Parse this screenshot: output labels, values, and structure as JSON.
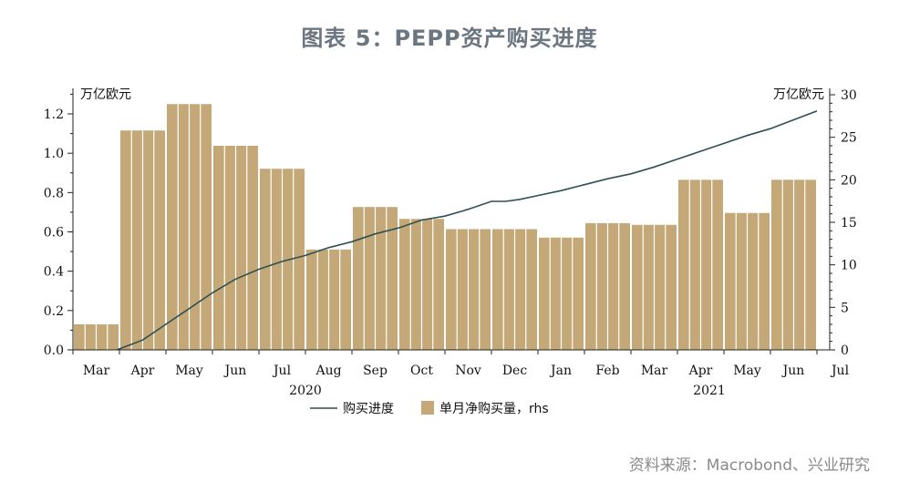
{
  "title": "图表 5：PEPP资产购买进度",
  "source": "资料来源：Macrobond、兴业研究",
  "chart_data": {
    "type": "bar+line",
    "left_axis_unit": "万亿欧元",
    "right_axis_unit": "万亿欧元",
    "left_ylim": [
      0,
      1.3
    ],
    "left_ticks": [
      "0.0",
      "0.2",
      "0.4",
      "0.6",
      "0.8",
      "1.0",
      "1.2"
    ],
    "right_ylim": [
      0,
      30
    ],
    "right_ticks": [
      "0",
      "5",
      "10",
      "15",
      "20",
      "25",
      "30"
    ],
    "month_labels": [
      "Mar",
      "Apr",
      "May",
      "Jun",
      "Jul",
      "Aug",
      "Sep",
      "Oct",
      "Nov",
      "Dec",
      "Jan",
      "Feb",
      "Mar",
      "Apr",
      "May",
      "Jun",
      "Jul"
    ],
    "year_labels": [
      "2020",
      "2021"
    ],
    "legend": {
      "line": "购买进度",
      "bars": "单月净购买量，rhs"
    },
    "bars": [
      {
        "month": "Mar 2020",
        "value": 3.0
      },
      {
        "month": "Apr 2020",
        "value": 25.8
      },
      {
        "month": "May 2020",
        "value": 28.9
      },
      {
        "month": "Jun 2020",
        "value": 24.0
      },
      {
        "month": "Jul 2020",
        "value": 21.3
      },
      {
        "month": "Aug 2020",
        "value": 11.8
      },
      {
        "month": "Sep 2020",
        "value": 16.8
      },
      {
        "month": "Oct 2020",
        "value": 15.4
      },
      {
        "month": "Nov 2020",
        "value": 14.2
      },
      {
        "month": "Dec 2020",
        "value": 14.2
      },
      {
        "month": "Jan 2021",
        "value": 13.2
      },
      {
        "month": "Feb 2021",
        "value": 14.9
      },
      {
        "month": "Mar 2021",
        "value": 14.7
      },
      {
        "month": "Apr 2021",
        "value": 20.0
      },
      {
        "month": "May 2021",
        "value": 16.1
      },
      {
        "month": "Jun 2021",
        "value": 20.0
      }
    ],
    "line": {
      "name": "购买进度",
      "points": [
        {
          "t": 0.95,
          "y": 0.0
        },
        {
          "t": 1.0,
          "y": 0.005
        },
        {
          "t": 1.5,
          "y": 0.05
        },
        {
          "t": 2.0,
          "y": 0.13
        },
        {
          "t": 2.5,
          "y": 0.21
        },
        {
          "t": 3.0,
          "y": 0.29
        },
        {
          "t": 3.5,
          "y": 0.36
        },
        {
          "t": 4.0,
          "y": 0.41
        },
        {
          "t": 4.5,
          "y": 0.45
        },
        {
          "t": 5.0,
          "y": 0.48
        },
        {
          "t": 5.5,
          "y": 0.52
        },
        {
          "t": 6.0,
          "y": 0.55
        },
        {
          "t": 6.5,
          "y": 0.59
        },
        {
          "t": 7.0,
          "y": 0.62
        },
        {
          "t": 7.5,
          "y": 0.66
        },
        {
          "t": 8.0,
          "y": 0.68
        },
        {
          "t": 8.5,
          "y": 0.715
        },
        {
          "t": 9.0,
          "y": 0.755
        },
        {
          "t": 9.3,
          "y": 0.755
        },
        {
          "t": 9.6,
          "y": 0.765
        },
        {
          "t": 10.0,
          "y": 0.785
        },
        {
          "t": 10.5,
          "y": 0.81
        },
        {
          "t": 11.0,
          "y": 0.84
        },
        {
          "t": 11.5,
          "y": 0.87
        },
        {
          "t": 12.0,
          "y": 0.895
        },
        {
          "t": 12.5,
          "y": 0.93
        },
        {
          "t": 13.0,
          "y": 0.97
        },
        {
          "t": 13.5,
          "y": 1.01
        },
        {
          "t": 14.0,
          "y": 1.05
        },
        {
          "t": 14.5,
          "y": 1.09
        },
        {
          "t": 15.0,
          "y": 1.125
        },
        {
          "t": 15.5,
          "y": 1.17
        },
        {
          "t": 16.0,
          "y": 1.215
        }
      ]
    },
    "colors": {
      "bar": "#c4a878",
      "line": "#2f5050",
      "axis": "#222222"
    }
  }
}
